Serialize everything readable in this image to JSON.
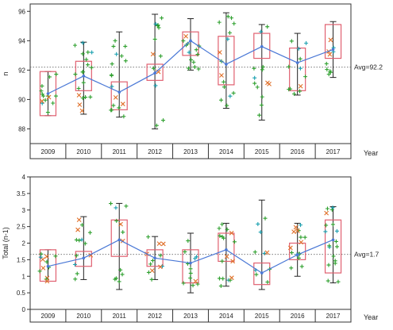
{
  "chart_data": [
    {
      "type": "box",
      "ylabel": "n",
      "xlabel": "Year",
      "categories": [
        "2009",
        "2010",
        "2011",
        "2012",
        "2013",
        "2014",
        "2015",
        "2016",
        "2017"
      ],
      "yticks": [
        "88",
        "90",
        "92",
        "94",
        "96"
      ],
      "ylim": [
        87,
        96.5
      ],
      "means": [
        90.4,
        91.6,
        90.5,
        91.8,
        94.0,
        92.4,
        93.6,
        92.5,
        93.4
      ],
      "boxes": [
        {
          "q1": 88.9,
          "q3": 91.9,
          "min": 88.9,
          "max": 91.9
        },
        {
          "q1": 90.6,
          "q3": 92.6,
          "min": 89.0,
          "max": 93.9
        },
        {
          "q1": 89.3,
          "q3": 91.2,
          "min": 88.8,
          "max": 94.6
        },
        {
          "q1": 91.3,
          "q3": 92.4,
          "min": 88.0,
          "max": 95.8
        },
        {
          "q1": 93.0,
          "q3": 94.6,
          "min": 92.0,
          "max": 95.5
        },
        {
          "q1": 91.0,
          "q3": 94.3,
          "min": 89.4,
          "max": 95.9
        },
        {
          "q1": 92.8,
          "q3": 94.5,
          "min": 88.6,
          "max": 95.1
        },
        {
          "q1": 90.6,
          "q3": 93.5,
          "min": 90.3,
          "max": 94.5
        },
        {
          "q1": 92.8,
          "q3": 95.1,
          "min": 91.5,
          "max": 95.3
        }
      ],
      "reference": {
        "value": 92.2,
        "label": "Avg=92.2"
      }
    },
    {
      "type": "box",
      "ylabel": "Total (n-1)",
      "xlabel": "Year",
      "categories": [
        "2009",
        "2010",
        "2011",
        "2012",
        "2013",
        "2014",
        "2015",
        "2016",
        "2017"
      ],
      "yticks": [
        "0",
        "0.5",
        "1",
        "1.5",
        "2",
        "2.5",
        "3",
        "3.5",
        "4"
      ],
      "ylim": [
        0,
        4
      ],
      "means": [
        1.3,
        1.55,
        2.1,
        1.55,
        1.4,
        1.8,
        1.1,
        1.65,
        2.1
      ],
      "boxes": [
        {
          "q1": 0.85,
          "q3": 1.8,
          "min": 0.85,
          "max": 1.8
        },
        {
          "q1": 1.3,
          "q3": 1.75,
          "min": 0.9,
          "max": 2.8
        },
        {
          "q1": 1.6,
          "q3": 2.7,
          "min": 0.6,
          "max": 3.2
        },
        {
          "q1": 1.3,
          "q3": 1.8,
          "min": 0.9,
          "max": 2.2
        },
        {
          "q1": 0.8,
          "q3": 1.8,
          "min": 0.5,
          "max": 2.3
        },
        {
          "q1": 1.45,
          "q3": 2.3,
          "min": 0.7,
          "max": 2.6
        },
        {
          "q1": 0.75,
          "q3": 1.4,
          "min": 0.6,
          "max": 3.3
        },
        {
          "q1": 1.5,
          "q3": 2.0,
          "min": 1.0,
          "max": 2.6
        },
        {
          "q1": 1.1,
          "q3": 2.7,
          "min": 0.8,
          "max": 3.1
        }
      ],
      "reference": {
        "value": 1.66,
        "label": "Avg=1.7"
      }
    }
  ],
  "colors": {
    "box": "#e06070",
    "mean_line": "#4a78d6",
    "whisker": "#222222",
    "point_green": "#2ea02e",
    "point_orange": "#e0702a",
    "point_teal": "#1aa0b0",
    "point_pink": "#d04080"
  }
}
